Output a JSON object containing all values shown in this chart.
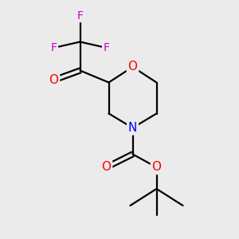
{
  "bg_color": "#ebebeb",
  "bond_color": "#000000",
  "bond_width": 1.6,
  "atom_colors": {
    "O": "#ff0000",
    "N": "#0000ff",
    "F": "#cc00cc",
    "C": "#000000"
  },
  "font_size_heteroatom": 11,
  "font_size_F": 10,
  "fig_width": 3.0,
  "fig_height": 3.0,
  "dpi": 100
}
